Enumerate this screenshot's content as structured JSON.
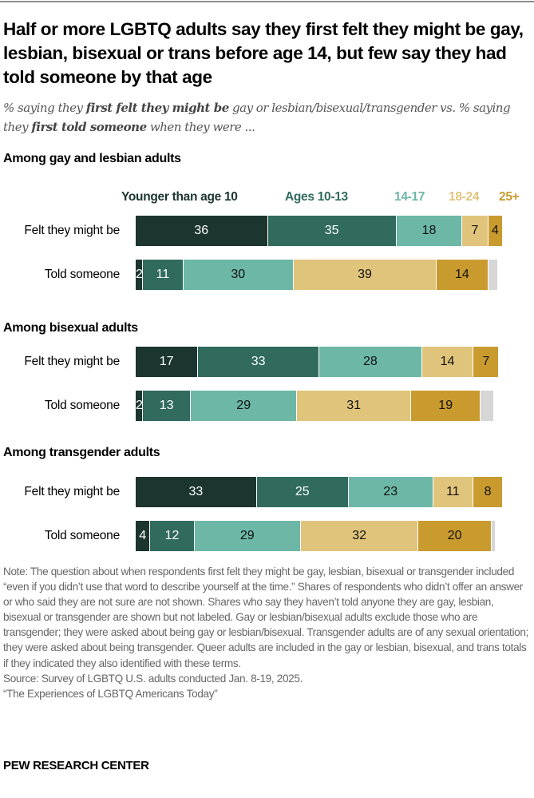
{
  "chart_data": {
    "type": "bar",
    "orientation": "horizontal",
    "stacked": true,
    "title": "Half or more LGBTQ adults say they first felt they might be gay, lesbian, bisexual or trans before age 14, but few say they had told someone by that age",
    "subtitle_parts": [
      "% saying they ",
      "first felt they might be",
      " gay or lesbian/bisexual/transgender vs. % saying they ",
      "first told someone",
      " when they were ..."
    ],
    "legend": [
      "Younger than age 10",
      "Ages 10-13",
      "14-17",
      "18-24",
      "25+"
    ],
    "legend_placement": "top",
    "colors": [
      "#1c352f",
      "#316b5e",
      "#6cb7a6",
      "#e0c47c",
      "#c99b2e"
    ],
    "unlabeled_color": "#d6d6d6",
    "xlim": [
      0,
      100
    ],
    "grid": false,
    "groups": [
      {
        "title": "Among gay and lesbian adults",
        "rows": [
          {
            "label": "Felt they might be",
            "values": [
              36,
              35,
              18,
              7,
              4
            ],
            "unlabeled": 0
          },
          {
            "label": "Told someone",
            "values": [
              2,
              11,
              30,
              39,
              14
            ],
            "unlabeled": 3
          }
        ]
      },
      {
        "title": "Among bisexual adults",
        "rows": [
          {
            "label": "Felt they might be",
            "values": [
              17,
              33,
              28,
              14,
              7
            ],
            "unlabeled": 0
          },
          {
            "label": "Told someone",
            "values": [
              2,
              13,
              29,
              31,
              19
            ],
            "unlabeled": 4
          }
        ]
      },
      {
        "title": "Among transgender adults",
        "rows": [
          {
            "label": "Felt they might be",
            "values": [
              33,
              25,
              23,
              11,
              8
            ],
            "unlabeled": 0
          },
          {
            "label": "Told someone",
            "values": [
              4,
              12,
              29,
              32,
              20
            ],
            "unlabeled": 1
          }
        ]
      }
    ]
  },
  "note": "Note: The question about when respondents first felt they might be gay, lesbian, bisexual or transgender included “even if you didn’t use that word to describe yourself at the time.” Shares of respondents who didn’t offer an answer or who said they are not sure are not shown. Shares who say they haven’t told anyone they are gay, lesbian, bisexual or transgender are shown but not labeled. Gay or lesbian/bisexual adults exclude those who are transgender; they were asked about being gay or lesbian/bisexual. Transgender adults are of any sexual orientation; they were asked about being transgender. Queer adults are included in the gay or lesbian, bisexual, and trans totals if they indicated they also identified with these terms.",
  "source": "Source: Survey of LGBTQ U.S. adults conducted Jan. 8-19, 2025.",
  "report": "“The Experiences of LGBTQ Americans Today”",
  "brand": "PEW RESEARCH CENTER"
}
